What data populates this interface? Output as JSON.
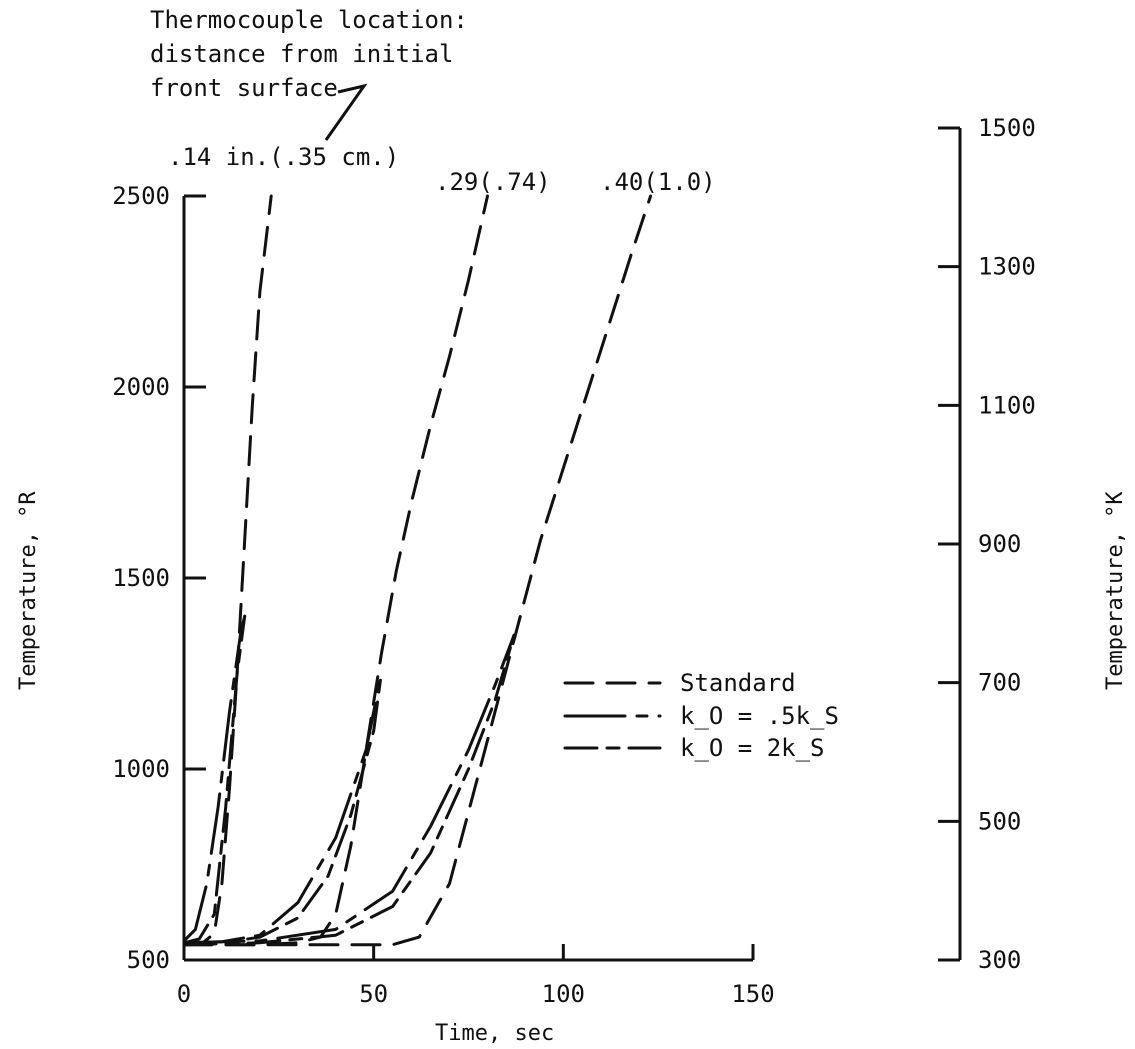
{
  "chart_data": {
    "type": "line",
    "annotation_title": [
      "Thermocouple location:",
      "distance from initial",
      "front surface"
    ],
    "xlabel": "Time, sec",
    "ylabel_left": "Temperature, °R",
    "ylabel_right": "Temperature, °K",
    "xlim": [
      0,
      150
    ],
    "ylim": [
      500,
      2500
    ],
    "ylim_right": [
      300,
      1500
    ],
    "x_ticks": [
      "0",
      "50",
      "100",
      "150"
    ],
    "y_ticks_left": [
      "500",
      "1000",
      "1500",
      "2000",
      "2500"
    ],
    "y_ticks_right": [
      "300",
      "500",
      "700",
      "900",
      "1100",
      "1300",
      "1500"
    ],
    "grid": false,
    "legend_position": "center-right",
    "legend": [
      {
        "label": "Standard",
        "style": "long-dash"
      },
      {
        "label": "k_O = .5k_S",
        "style": "solid-dash"
      },
      {
        "label": "k_O = 2k_S",
        "style": "dash-short"
      }
    ],
    "groups": [
      {
        "location_label": ".14 in.(.35 cm.)",
        "series": [
          {
            "style": "long-dash",
            "x": [
              0,
              5,
              8,
              10,
              12,
              14,
              16,
              18,
              20,
              23
            ],
            "y": [
              540,
              545,
              570,
              700,
              950,
              1250,
              1600,
              1950,
              2250,
              2500
            ]
          },
          {
            "style": "solid-dash",
            "x": [
              0,
              3,
              6,
              9,
              12,
              15,
              16
            ],
            "y": [
              550,
              580,
              700,
              900,
              1150,
              1360,
              1400
            ]
          },
          {
            "style": "dash-short",
            "x": [
              0,
              4,
              8,
              11,
              14,
              16
            ],
            "y": [
              545,
              555,
              620,
              900,
              1250,
              1400
            ]
          }
        ]
      },
      {
        "location_label": ".29(.74)",
        "series": [
          {
            "style": "long-dash",
            "x": [
              0,
              20,
              30,
              36,
              40,
              44,
              48,
              52,
              56,
              60,
              65,
              70,
              75,
              80
            ],
            "y": [
              540,
              540,
              545,
              560,
              620,
              800,
              1050,
              1300,
              1520,
              1700,
              1900,
              2080,
              2280,
              2500
            ]
          },
          {
            "style": "solid-dash",
            "x": [
              0,
              10,
              20,
              30,
              40,
              48,
              52
            ],
            "y": [
              545,
              548,
              565,
              650,
              820,
              1050,
              1250
            ]
          },
          {
            "style": "dash-short",
            "x": [
              0,
              10,
              20,
              30,
              38,
              44,
              50,
              52
            ],
            "y": [
              540,
              545,
              560,
              610,
              720,
              880,
              1100,
              1250
            ]
          }
        ]
      },
      {
        "location_label": ".40(1.0)",
        "series": [
          {
            "style": "long-dash",
            "x": [
              0,
              40,
              55,
              62,
              70,
              78,
              86,
              94,
              102,
              110,
              118,
              123
            ],
            "y": [
              540,
              540,
              540,
              560,
              700,
              1000,
              1300,
              1600,
              1850,
              2100,
              2350,
              2500
            ]
          },
          {
            "style": "solid-dash",
            "x": [
              0,
              20,
              40,
              55,
              65,
              75,
              82,
              87
            ],
            "y": [
              545,
              550,
              580,
              680,
              850,
              1050,
              1220,
              1350
            ]
          },
          {
            "style": "dash-short",
            "x": [
              0,
              20,
              40,
              55,
              65,
              75,
              82,
              87
            ],
            "y": [
              540,
              545,
              565,
              640,
              780,
              1000,
              1180,
              1350
            ]
          }
        ]
      }
    ]
  }
}
